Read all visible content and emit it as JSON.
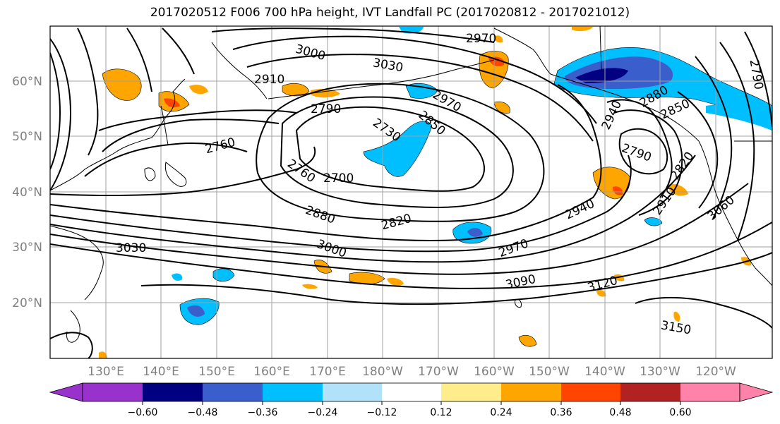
{
  "title": "2017020512 F006 700 hPa height, IVT Landfall PC (2017020812 - 2017021012)",
  "lat_labels": [
    "60°N",
    "50°N",
    "40°N",
    "30°N",
    "20°N"
  ],
  "lon_labels": [
    "130°E",
    "140°E",
    "150°E",
    "160°E",
    "170°E",
    "180°W",
    "170°W",
    "160°W",
    "150°W",
    "140°W",
    "130°W",
    "120°W"
  ],
  "contour_labels": [
    "2970",
    "3000",
    "3030",
    "2910",
    "2790",
    "2970",
    "2850",
    "2730",
    "2760",
    "2760",
    "2700",
    "2880",
    "2820",
    "3030",
    "3000",
    "2970",
    "2940",
    "3090",
    "3120",
    "3150",
    "2880",
    "2850",
    "2940",
    "2790",
    "2820",
    "2910",
    "3060",
    "2790"
  ],
  "colorbar": {
    "ticks": [
      "−0.60",
      "−0.48",
      "−0.36",
      "−0.24",
      "−0.12",
      "0.12",
      "0.24",
      "0.36",
      "0.48",
      "0.60"
    ],
    "colors": [
      "#9932cc",
      "#000080",
      "#3a5fcd",
      "#00bfff",
      "#b2e2fa",
      "#ffffff",
      "#ffec8b",
      "#ffa500",
      "#ff4500",
      "#b22222",
      "#ff82ab"
    ]
  },
  "shading_colors": {
    "light_blue": "#b2e2fa",
    "blue": "#00bfff",
    "mid_blue": "#3a5fcd",
    "navy": "#000080",
    "yellow": "#ffec8b",
    "orange": "#ffa500",
    "red_orange": "#ff4500",
    "dark_red": "#b22222"
  }
}
